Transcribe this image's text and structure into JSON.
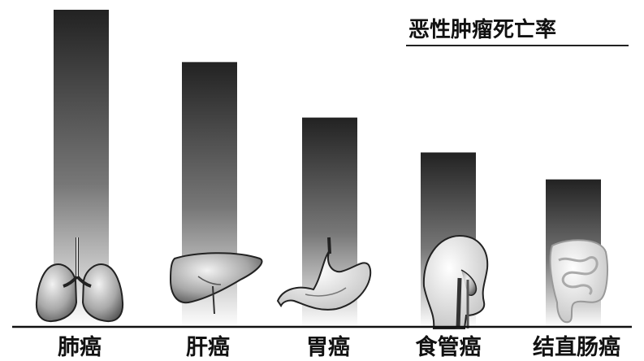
{
  "chart_data": {
    "type": "bar",
    "title": "恶性肿瘤死亡率",
    "categories": [
      "肺癌",
      "肝癌",
      "胃癌",
      "食管癌",
      "结直肠癌"
    ],
    "values": [
      100,
      83.5,
      66,
      55,
      46.5
    ],
    "ylim": [
      0,
      100
    ],
    "xlabel": "",
    "ylabel": "",
    "grid": false,
    "axis_labels_shown": false,
    "bar_gradient": {
      "top": "#222222",
      "bottom": "#ffffff"
    },
    "icons": [
      "lungs-icon",
      "liver-icon",
      "stomach-icon",
      "esophagus-icon",
      "intestine-icon"
    ]
  }
}
